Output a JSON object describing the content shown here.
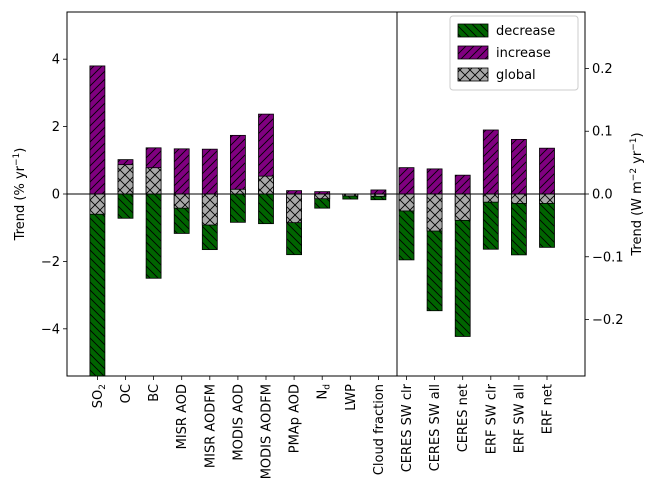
{
  "chart_data": {
    "type": "bar",
    "stacked_from_zero": true,
    "legend": {
      "placement": "top-right",
      "entries": [
        {
          "key": "decrease",
          "label": "decrease",
          "color": "#006400",
          "hatch": "\\\\"
        },
        {
          "key": "increase",
          "label": "increase",
          "color": "#800080",
          "hatch": "//"
        },
        {
          "key": "global",
          "label": "global",
          "color": "#a9a9a9",
          "hatch": "x"
        }
      ]
    },
    "left_axis": {
      "label": "Trend (% yr",
      "label_sup": "−1",
      "label_end": ")",
      "ylim": [
        -5.4,
        5.4
      ],
      "ticks": [
        -4,
        -2,
        0,
        2,
        4
      ],
      "tick_labels": [
        "−4",
        "−2",
        "0",
        "2",
        "4"
      ]
    },
    "right_axis": {
      "label": "Trend (W m",
      "label_sup1": "−2",
      "label_mid": " yr",
      "label_sup2": "−1",
      "label_end": ")",
      "ylim": [
        -0.29,
        0.29
      ],
      "ticks": [
        -0.2,
        -0.1,
        0.0,
        0.1,
        0.2
      ],
      "tick_labels": [
        "−0.2",
        "−0.1",
        "0.0",
        "0.1",
        "0.2"
      ]
    },
    "groups": [
      {
        "axis": "left",
        "categories": [
          {
            "label": "SO",
            "sub": "2",
            "increase": 3.8,
            "decrease": -5.4,
            "global": -0.6
          },
          {
            "label": "OC",
            "sub": "",
            "increase": 1.02,
            "decrease": -0.72,
            "global": 0.87
          },
          {
            "label": "BC",
            "sub": "",
            "increase": 1.37,
            "decrease": -2.5,
            "global": 0.78
          },
          {
            "label": "MISR AOD",
            "sub": "",
            "increase": 1.34,
            "decrease": -1.17,
            "global": -0.42
          },
          {
            "label": "MISR AODFM",
            "sub": "",
            "increase": 1.33,
            "decrease": -1.65,
            "global": -0.92
          },
          {
            "label": "MODIS AOD",
            "sub": "",
            "increase": 1.74,
            "decrease": -0.84,
            "global": 0.14
          },
          {
            "label": "MODIS AODFM",
            "sub": "",
            "increase": 2.37,
            "decrease": -0.88,
            "global": 0.53
          },
          {
            "label": "PMAp AOD",
            "sub": "",
            "increase": 0.1,
            "decrease": -1.8,
            "global": -0.85
          },
          {
            "label": "N",
            "sub": "d",
            "increase": 0.07,
            "decrease": -0.42,
            "global": -0.14
          },
          {
            "label": "LWP",
            "sub": "",
            "increase": 0.0,
            "decrease": -0.15,
            "global": -0.06
          },
          {
            "label": "Cloud fraction",
            "sub": "",
            "increase": 0.12,
            "decrease": -0.17,
            "global": -0.07
          }
        ]
      },
      {
        "axis": "right",
        "categories": [
          {
            "label": "CERES SW clr",
            "sub": "",
            "increase": 0.042,
            "decrease": -0.105,
            "global": -0.027
          },
          {
            "label": "CERES SW all",
            "sub": "",
            "increase": 0.04,
            "decrease": -0.186,
            "global": -0.059
          },
          {
            "label": "CERES net",
            "sub": "",
            "increase": 0.03,
            "decrease": -0.227,
            "global": -0.042
          },
          {
            "label": "ERF SW clr",
            "sub": "",
            "increase": 0.102,
            "decrease": -0.088,
            "global": -0.013
          },
          {
            "label": "ERF SW all",
            "sub": "",
            "increase": 0.087,
            "decrease": -0.097,
            "global": -0.015
          },
          {
            "label": "ERF net",
            "sub": "",
            "increase": 0.073,
            "decrease": -0.085,
            "global": -0.015
          }
        ]
      }
    ]
  }
}
